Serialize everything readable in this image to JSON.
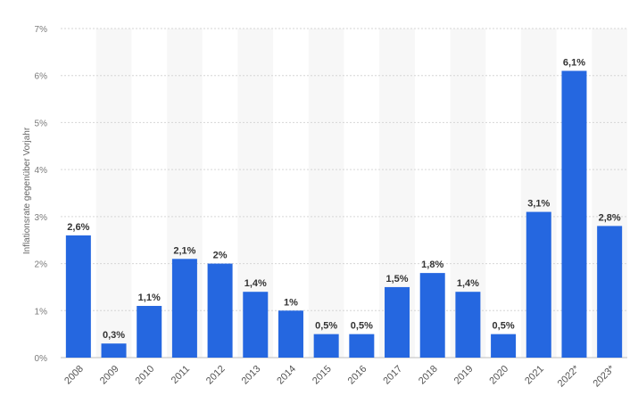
{
  "chart_data": {
    "type": "bar",
    "title": "",
    "xlabel": "",
    "ylabel": "Inflationsrate gegenüber Vorjahr",
    "categories": [
      "2008",
      "2009",
      "2010",
      "2011",
      "2012",
      "2013",
      "2014",
      "2015",
      "2016",
      "2017",
      "2018",
      "2019",
      "2020",
      "2021",
      "2022*",
      "2023*"
    ],
    "values": [
      2.6,
      0.3,
      1.1,
      2.1,
      2.0,
      1.4,
      1.0,
      0.5,
      0.5,
      1.5,
      1.8,
      1.4,
      0.5,
      3.1,
      6.1,
      2.8
    ],
    "data_labels": [
      "2,6%",
      "0,3%",
      "1,1%",
      "2,1%",
      "2%",
      "1,4%",
      "1%",
      "0,5%",
      "0,5%",
      "1,5%",
      "1,8%",
      "1,4%",
      "0,5%",
      "3,1%",
      "6,1%",
      "2,8%"
    ],
    "ylim": [
      0,
      7
    ],
    "y_ticks": [
      "0%",
      "1%",
      "2%",
      "3%",
      "4%",
      "5%",
      "6%",
      "7%"
    ],
    "grid": true,
    "legend": "none",
    "bar_color": "#2567e0",
    "band_color": "#f7f7f7",
    "grid_color": "#d6d6d6"
  }
}
